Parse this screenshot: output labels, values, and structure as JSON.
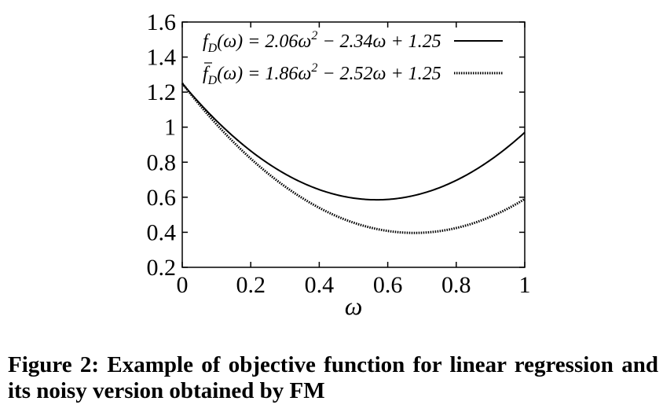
{
  "chart_data": {
    "type": "line",
    "xlabel": "ω",
    "ylabel": "",
    "xlim": [
      0,
      1
    ],
    "ylim": [
      0.2,
      1.6
    ],
    "x_ticks": [
      "0",
      "0.2",
      "0.4",
      "0.6",
      "0.8",
      "1"
    ],
    "y_ticks": [
      "0.2",
      "0.4",
      "0.6",
      "0.8",
      "1",
      "1.2",
      "1.4",
      "1.6"
    ],
    "grid": false,
    "legend_position": "top-right",
    "series": [
      {
        "name": "f_D(ω) = 2.06ω² − 2.34ω + 1.25",
        "style": "solid",
        "coefficients": [
          2.06,
          -2.34,
          1.25
        ],
        "x": [
          0,
          0.1,
          0.2,
          0.3,
          0.4,
          0.5,
          0.6,
          0.7,
          0.8,
          0.9,
          1.0
        ],
        "values": [
          1.25,
          1.037,
          0.864,
          0.733,
          0.642,
          0.595,
          0.587,
          0.621,
          0.696,
          0.813,
          0.97
        ]
      },
      {
        "name": "f̄_D(ω) = 1.86ω² − 2.52ω + 1.25",
        "style": "dotted",
        "coefficients": [
          1.86,
          -2.52,
          1.25
        ],
        "x": [
          0,
          0.1,
          0.2,
          0.3,
          0.4,
          0.5,
          0.6,
          0.7,
          0.8,
          0.9,
          1.0
        ],
        "values": [
          1.25,
          1.017,
          0.82,
          0.661,
          0.538,
          0.455,
          0.408,
          0.397,
          0.424,
          0.488,
          0.59
        ]
      }
    ]
  },
  "caption": "Figure 2: Example of objective function for linear regression and its noisy version obtained by FM"
}
